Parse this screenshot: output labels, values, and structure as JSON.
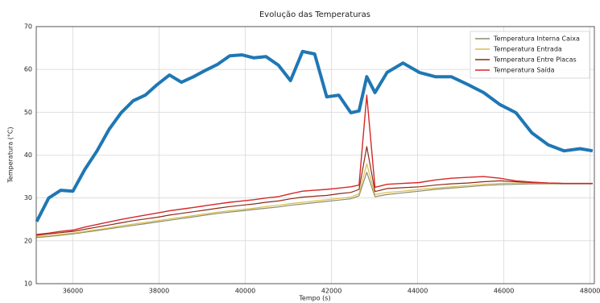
{
  "chart_data": {
    "type": "line",
    "title": "Evolução das Temperaturas",
    "x_label": "Tempo (s)",
    "y_label": "Temperatura (°C)",
    "x": [
      35160,
      35440,
      35720,
      36000,
      36280,
      36560,
      36840,
      37120,
      37400,
      37680,
      37960,
      38240,
      38520,
      38800,
      39080,
      39360,
      39640,
      39920,
      40200,
      40480,
      40770,
      41050,
      41330,
      41610,
      41890,
      42170,
      42450,
      42640,
      42820,
      43010,
      43290,
      43660,
      44040,
      44410,
      44780,
      45160,
      45530,
      45910,
      46280,
      46650,
      47030,
      47400,
      47770,
      48060
    ],
    "series": [
      {
        "color": "#1f77b4",
        "linewidth": 4,
        "values": [
          24.5,
          30,
          31.8,
          31.6,
          36.7,
          41,
          46,
          49.9,
          52.7,
          54,
          56.5,
          58.7,
          57,
          58.3,
          59.8,
          61.2,
          63.2,
          63.4,
          62.7,
          63,
          61,
          57.4,
          64.2,
          63.6,
          53.6,
          54,
          49.9,
          50.3,
          58.3,
          54.6,
          59.3,
          61.5,
          59.3,
          58.3,
          58.3,
          56.5,
          54.6,
          51.8,
          49.9,
          45.2,
          42.4,
          41,
          41.5,
          41
        ]
      },
      {
        "name": "Temperatura Interna Caixa",
        "color": "#8c8c6a",
        "linewidth": 1.2,
        "values": [
          20.8,
          21,
          21.3,
          21.6,
          22,
          22.4,
          22.8,
          23.2,
          23.6,
          24,
          24.4,
          24.8,
          25.2,
          25.6,
          26,
          26.4,
          26.7,
          27,
          27.3,
          27.6,
          27.9,
          28.3,
          28.6,
          28.9,
          29.2,
          29.5,
          29.8,
          30.5,
          36,
          30.3,
          30.8,
          31.2,
          31.6,
          32,
          32.3,
          32.6,
          32.9,
          33.1,
          33.2,
          33.3,
          33.3,
          33.3,
          33.3,
          33.3
        ]
      },
      {
        "name": "Temperatura Entrada",
        "color": "#d9bd4c",
        "linewidth": 1.2,
        "values": [
          21,
          21.2,
          21.5,
          21.8,
          22.2,
          22.6,
          23,
          23.5,
          23.9,
          24.3,
          24.7,
          25.1,
          25.5,
          25.9,
          26.3,
          26.7,
          27,
          27.3,
          27.6,
          28,
          28.3,
          28.7,
          29,
          29.3,
          29.6,
          29.9,
          30.2,
          31,
          38,
          30.8,
          31.3,
          31.6,
          32,
          32.3,
          32.6,
          32.9,
          33.2,
          33.4,
          33.5,
          33.5,
          33.4,
          33.4,
          33.4,
          33.4
        ]
      },
      {
        "name": "Temperatura Entre Placas",
        "color": "#8b2a1a",
        "linewidth": 1.2,
        "values": [
          21.3,
          21.6,
          21.9,
          22.2,
          22.7,
          23.2,
          23.7,
          24.2,
          24.7,
          25.1,
          25.5,
          26,
          26.4,
          26.8,
          27.2,
          27.6,
          28,
          28.3,
          28.6,
          29,
          29.3,
          29.8,
          30.2,
          30.4,
          30.6,
          31,
          31.3,
          32,
          42,
          31.5,
          32.2,
          32.4,
          32.6,
          33,
          33.3,
          33.5,
          33.8,
          34,
          33.8,
          33.6,
          33.5,
          33.4,
          33.4,
          33.4
        ]
      },
      {
        "name": "Temperatura Saída",
        "color": "#d62728",
        "linewidth": 1.4,
        "values": [
          21.5,
          21.8,
          22.2,
          22.5,
          23.2,
          23.8,
          24.4,
          25,
          25.5,
          26,
          26.5,
          27,
          27.4,
          27.8,
          28.2,
          28.6,
          29,
          29.3,
          29.6,
          30,
          30.3,
          31,
          31.6,
          31.8,
          32,
          32.3,
          32.6,
          33,
          54,
          32.5,
          33.2,
          33.4,
          33.6,
          34.2,
          34.6,
          34.8,
          35,
          34.6,
          34,
          33.7,
          33.5,
          33.4,
          33.4,
          33.4
        ]
      }
    ],
    "xlim": [
      35150,
      48100
    ],
    "xticks": [
      36000,
      38000,
      40000,
      42000,
      44000,
      46000,
      48000
    ],
    "ylim": [
      10,
      70
    ],
    "yticks": [
      10,
      20,
      30,
      40,
      50,
      60,
      70
    ],
    "grid": true,
    "legend": "upper right"
  }
}
